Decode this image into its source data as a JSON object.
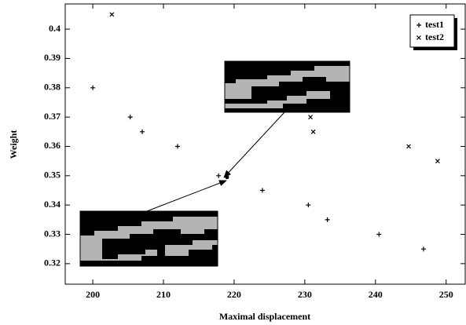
{
  "chart_data": {
    "type": "scatter",
    "x_label": "Maximal displacement",
    "y_label": "Weight",
    "xlim": [
      196.1,
      252.7
    ],
    "ylim": [
      0.313,
      0.4086
    ],
    "xticks": [
      200,
      210,
      220,
      230,
      240,
      250
    ],
    "yticks": [
      0.32,
      0.33,
      0.34,
      0.35,
      0.36,
      0.37,
      0.38,
      0.39,
      0.4
    ],
    "legend": "top-right",
    "series": [
      {
        "name": "test1",
        "marker": "plus",
        "color": "#000000",
        "x": [
          200,
          205.3,
          207,
          212,
          217.8,
          224,
          230.5,
          233.2,
          240.5,
          246.8
        ],
        "y": [
          0.38,
          0.37,
          0.365,
          0.36,
          0.35,
          0.345,
          0.34,
          0.335,
          0.33,
          0.325
        ]
      },
      {
        "name": "test2",
        "marker": "cross",
        "color": "#000000",
        "x": [
          202.7,
          230.8,
          231.2,
          244.7,
          248.8
        ],
        "y": [
          0.405,
          0.37,
          0.365,
          0.36,
          0.355
        ]
      }
    ],
    "highlight": {
      "x": 219,
      "y": 0.3495
    }
  }
}
